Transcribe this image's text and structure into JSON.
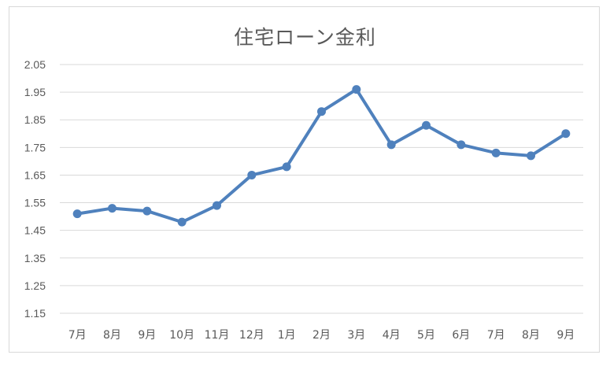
{
  "chart_data": {
    "type": "line",
    "title": "住宅ローン金利",
    "xlabel": "",
    "ylabel": "",
    "categories": [
      "7月",
      "8月",
      "9月",
      "10月",
      "11月",
      "12月",
      "1月",
      "2月",
      "3月",
      "4月",
      "5月",
      "6月",
      "7月",
      "8月",
      "9月"
    ],
    "series": [
      {
        "values": [
          1.51,
          1.53,
          1.52,
          1.48,
          1.54,
          1.65,
          1.68,
          1.88,
          1.96,
          1.76,
          1.83,
          1.76,
          1.73,
          1.72,
          1.8
        ]
      }
    ],
    "y_ticks": [
      "1.15",
      "1.25",
      "1.35",
      "1.45",
      "1.55",
      "1.65",
      "1.75",
      "1.85",
      "1.95",
      "2.05"
    ],
    "ylim": [
      1.15,
      2.05
    ],
    "grid": true,
    "legend": "none",
    "colors": {
      "line": "#4f81bd",
      "grid": "#d9d9d9",
      "text": "#595959"
    }
  }
}
